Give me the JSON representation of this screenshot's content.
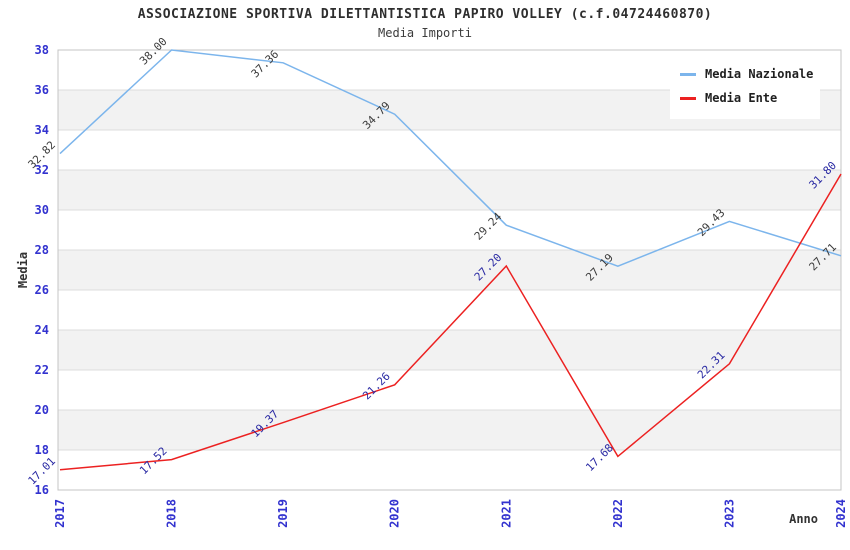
{
  "header": {
    "title": "ASSOCIAZIONE SPORTIVA DILETTANTISTICA PAPIRO VOLLEY (c.f.04724460870)",
    "subtitle": "Media Importi"
  },
  "legend": {
    "items": [
      {
        "label": "Media Nazionale",
        "color": "#7cb5ec"
      },
      {
        "label": "Media Ente",
        "color": "#ec2121"
      }
    ]
  },
  "chart_data": {
    "type": "line",
    "title": "ASSOCIAZIONE SPORTIVA DILETTANTISTICA PAPIRO VOLLEY (c.f.04724460870)",
    "subtitle": "Media Importi",
    "xlabel": "Anno",
    "ylabel": "Media",
    "categories": [
      "2017",
      "2018",
      "2019",
      "2020",
      "2021",
      "2022",
      "2023",
      "2024"
    ],
    "series": [
      {
        "name": "Media Nazionale",
        "color": "#7cb5ec",
        "label_color": "#3c3c3c",
        "values": [
          32.82,
          38.0,
          37.36,
          34.79,
          29.24,
          27.19,
          29.43,
          27.71
        ]
      },
      {
        "name": "Media Ente",
        "color": "#ec2121",
        "label_color": "#2929a3",
        "values": [
          17.01,
          17.52,
          19.37,
          21.26,
          27.2,
          17.68,
          22.31,
          31.8
        ]
      }
    ],
    "ylim": [
      16,
      38
    ],
    "ytick_step": 2,
    "grid": true,
    "legend_position": "top-right",
    "styles": {
      "tick_label_color": "#3232cf",
      "grid_line_color": "#dcdcdc",
      "plot_border_color": "#c4c4c4",
      "band_fill_color": "#f2f2f2",
      "axis_title_color": "#333333"
    }
  }
}
